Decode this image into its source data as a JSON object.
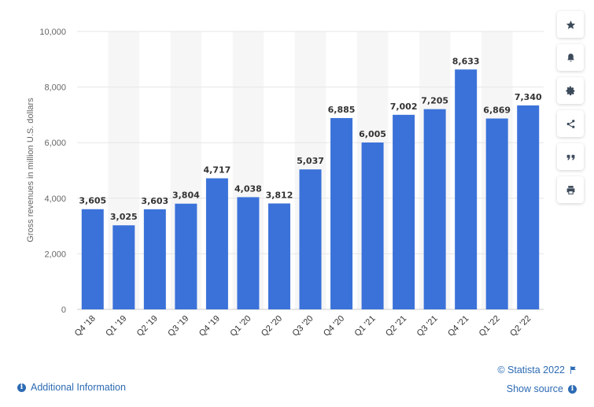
{
  "chart_data": {
    "type": "bar",
    "categories": [
      "Q4 '18",
      "Q1 '19",
      "Q2 '19",
      "Q3 '19",
      "Q4 '19",
      "Q1 '20",
      "Q2 '20",
      "Q3 '20",
      "Q4 '20",
      "Q1 '21",
      "Q2 '21",
      "Q3 '21",
      "Q4 '21",
      "Q1 '22",
      "Q2 '22"
    ],
    "values": [
      3605,
      3025,
      3603,
      3804,
      4717,
      4038,
      3812,
      5037,
      6885,
      6005,
      7002,
      7205,
      8633,
      6869,
      7340
    ],
    "data_labels": [
      "3,605",
      "3,025",
      "3,603",
      "3,804",
      "4,717",
      "4,038",
      "3,812",
      "5,037",
      "6,885",
      "6,005",
      "7,002",
      "7,205",
      "8,633",
      "6,869",
      "7,340"
    ],
    "ylabel": "Gross revenues in million U.S. dollars",
    "xlabel": "",
    "ylim": [
      0,
      10000
    ],
    "yticks": [
      0,
      2000,
      4000,
      6000,
      8000,
      10000
    ],
    "ytick_labels": [
      "0",
      "2,000",
      "4,000",
      "6,000",
      "8,000",
      "10,000"
    ],
    "bar_color": "#3b72d9",
    "grid": true,
    "alternating_column_shading": true
  },
  "toolbar": {
    "icons": [
      "star-icon",
      "bell-icon",
      "gear-icon",
      "share-icon",
      "quote-icon",
      "print-icon"
    ]
  },
  "footer": {
    "additional_info": "Additional Information",
    "copyright": "© Statista 2022",
    "show_source": "Show source"
  }
}
